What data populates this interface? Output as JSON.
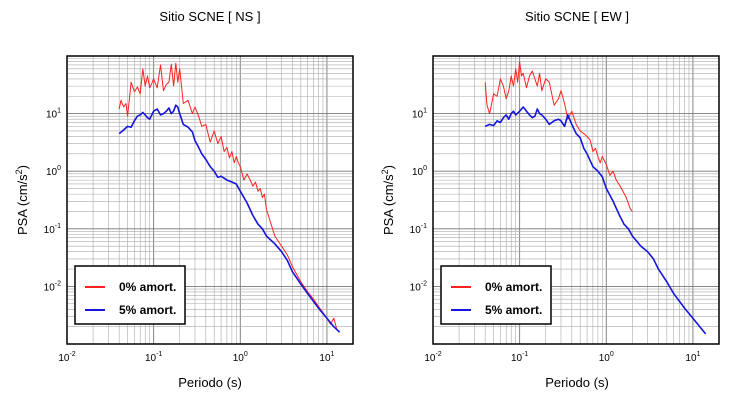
{
  "chart_data": [
    {
      "type": "line",
      "title": "Sitio SCNE [ NS ]",
      "xlabel": "Periodo (s)",
      "ylabel_main": "PSA (cm/s",
      "ylabel_sup": "2",
      "ylabel_close": ")",
      "x_scale": "log",
      "y_scale": "log",
      "xlim": [
        0.01,
        20
      ],
      "ylim": [
        0.001,
        100
      ],
      "grid": true,
      "legend_position": "bottom-left",
      "x_ticks": [
        {
          "base": "10",
          "exp": "-2"
        },
        {
          "base": "10",
          "exp": "-1"
        },
        {
          "base": "10",
          "exp": "0"
        },
        {
          "base": "10",
          "exp": "1"
        }
      ],
      "y_ticks": [
        {
          "base": "10",
          "exp": "-2"
        },
        {
          "base": "10",
          "exp": "-1"
        },
        {
          "base": "10",
          "exp": "0"
        },
        {
          "base": "10",
          "exp": "1"
        }
      ],
      "series": [
        {
          "name": "0% amort.",
          "color": "#ff2020",
          "x": [
            0.04,
            0.042,
            0.045,
            0.048,
            0.05,
            0.055,
            0.06,
            0.065,
            0.07,
            0.075,
            0.08,
            0.085,
            0.09,
            0.095,
            0.1,
            0.11,
            0.12,
            0.13,
            0.14,
            0.15,
            0.16,
            0.17,
            0.18,
            0.19,
            0.2,
            0.22,
            0.25,
            0.28,
            0.3,
            0.33,
            0.36,
            0.4,
            0.45,
            0.5,
            0.55,
            0.6,
            0.65,
            0.7,
            0.75,
            0.8,
            0.85,
            0.9,
            0.95,
            1.0,
            1.1,
            1.2,
            1.3,
            1.4,
            1.5,
            1.6,
            1.7,
            1.8,
            1.9,
            2.0,
            2.2,
            2.5,
            3.0,
            3.5,
            4.0,
            5.0,
            6.0,
            7.0,
            8.0,
            9.0,
            10.0,
            11.0,
            12.0,
            13.0,
            14.0
          ],
          "y": [
            12,
            17,
            13,
            15,
            9,
            35,
            24,
            29,
            22,
            60,
            30,
            45,
            28,
            33,
            40,
            28,
            70,
            25,
            32,
            35,
            72,
            30,
            75,
            35,
            60,
            15,
            17,
            10,
            13,
            9,
            6,
            6.5,
            3.2,
            5.0,
            3.0,
            4.0,
            2.2,
            2.6,
            1.7,
            2.2,
            1.4,
            1.8,
            1.4,
            1.2,
            0.7,
            0.9,
            0.7,
            0.55,
            0.65,
            0.45,
            0.5,
            0.35,
            0.4,
            0.22,
            0.14,
            0.075,
            0.05,
            0.035,
            0.022,
            0.012,
            0.008,
            0.006,
            0.0045,
            0.0035,
            0.0028,
            0.0022,
            0.0028,
            0.0018,
            0.0016
          ]
        },
        {
          "name": "5% amort.",
          "color": "#1515e0",
          "x": [
            0.04,
            0.045,
            0.05,
            0.055,
            0.06,
            0.065,
            0.07,
            0.075,
            0.08,
            0.085,
            0.09,
            0.1,
            0.11,
            0.12,
            0.13,
            0.14,
            0.15,
            0.16,
            0.17,
            0.18,
            0.19,
            0.2,
            0.22,
            0.25,
            0.28,
            0.3,
            0.33,
            0.36,
            0.4,
            0.45,
            0.5,
            0.55,
            0.6,
            0.7,
            0.8,
            0.9,
            1.0,
            1.2,
            1.4,
            1.6,
            1.8,
            2.0,
            2.5,
            3.0,
            3.5,
            4.0,
            5.0,
            6.0,
            7.0,
            8.0,
            10.0,
            12.0,
            14.0
          ],
          "y": [
            4.5,
            5.2,
            6.0,
            5.8,
            7.5,
            9.0,
            9.5,
            10.5,
            9.5,
            8.5,
            8.0,
            11,
            12,
            9.5,
            10,
            11,
            12.5,
            10,
            11,
            14,
            13,
            10,
            6.5,
            5.8,
            4.8,
            3.4,
            2.6,
            2.0,
            1.6,
            1.2,
            1.0,
            0.78,
            0.82,
            0.7,
            0.65,
            0.6,
            0.45,
            0.28,
            0.17,
            0.12,
            0.1,
            0.075,
            0.055,
            0.04,
            0.028,
            0.018,
            0.011,
            0.0075,
            0.0055,
            0.0042,
            0.0028,
            0.002,
            0.0016
          ]
        }
      ]
    },
    {
      "type": "line",
      "title": "Sitio SCNE [ EW ]",
      "xlabel": "Periodo (s)",
      "ylabel_main": "PSA (cm/s",
      "ylabel_sup": "2",
      "ylabel_close": ")",
      "x_scale": "log",
      "y_scale": "log",
      "xlim": [
        0.01,
        20
      ],
      "ylim": [
        0.001,
        100
      ],
      "grid": true,
      "legend_position": "bottom-left",
      "x_ticks": [
        {
          "base": "10",
          "exp": "-2"
        },
        {
          "base": "10",
          "exp": "-1"
        },
        {
          "base": "10",
          "exp": "0"
        },
        {
          "base": "10",
          "exp": "1"
        }
      ],
      "y_ticks": [
        {
          "base": "10",
          "exp": "-2"
        },
        {
          "base": "10",
          "exp": "-1"
        },
        {
          "base": "10",
          "exp": "0"
        },
        {
          "base": "10",
          "exp": "1"
        }
      ],
      "series": [
        {
          "name": "0% amort.",
          "color": "#ff2020",
          "x": [
            0.04,
            0.042,
            0.045,
            0.05,
            0.055,
            0.06,
            0.065,
            0.07,
            0.075,
            0.08,
            0.085,
            0.09,
            0.095,
            0.1,
            0.105,
            0.11,
            0.12,
            0.13,
            0.14,
            0.15,
            0.16,
            0.17,
            0.18,
            0.2,
            0.22,
            0.25,
            0.28,
            0.3,
            0.33,
            0.36,
            0.4,
            0.45,
            0.5,
            0.55,
            0.6,
            0.65,
            0.7,
            0.75,
            0.8,
            0.85,
            0.9,
            1.0,
            1.1,
            1.2,
            1.3,
            1.4,
            1.5,
            1.7,
            1.9,
            2.0
          ],
          "y": [
            35,
            14,
            10,
            22,
            20,
            40,
            30,
            18,
            25,
            45,
            30,
            60,
            35,
            80,
            45,
            50,
            28,
            45,
            55,
            40,
            30,
            50,
            25,
            40,
            35,
            14,
            18,
            25,
            15,
            8,
            11,
            6.5,
            5.0,
            4.5,
            4.0,
            3.5,
            2.2,
            2.5,
            1.8,
            1.4,
            1.8,
            1.3,
            0.85,
            1.0,
            0.7,
            0.6,
            0.5,
            0.35,
            0.22,
            0.2
          ]
        },
        {
          "name": "5% amort.",
          "color": "#1515e0",
          "x": [
            0.04,
            0.045,
            0.05,
            0.055,
            0.06,
            0.065,
            0.07,
            0.075,
            0.08,
            0.085,
            0.09,
            0.1,
            0.11,
            0.12,
            0.13,
            0.14,
            0.15,
            0.16,
            0.17,
            0.18,
            0.2,
            0.22,
            0.25,
            0.28,
            0.3,
            0.33,
            0.36,
            0.4,
            0.45,
            0.5,
            0.55,
            0.6,
            0.7,
            0.8,
            0.9,
            1.0,
            1.2,
            1.4,
            1.6,
            1.8,
            2.0,
            2.5,
            3.0,
            3.5,
            4.0,
            5.0,
            6.0,
            7.0,
            8.0,
            10.0,
            12.0,
            14.0
          ],
          "y": [
            6.0,
            6.5,
            6.2,
            7.5,
            7.0,
            8.5,
            9.5,
            8.0,
            10,
            11,
            9.5,
            11,
            13,
            11,
            9.5,
            8.5,
            9.0,
            12,
            10,
            9.5,
            8.0,
            6.5,
            7.5,
            8.0,
            7.5,
            6.0,
            9.5,
            6.5,
            4.5,
            3.8,
            2.5,
            2.0,
            1.2,
            1.0,
            0.8,
            0.5,
            0.3,
            0.18,
            0.12,
            0.1,
            0.075,
            0.05,
            0.04,
            0.03,
            0.02,
            0.012,
            0.0075,
            0.0055,
            0.0042,
            0.0028,
            0.002,
            0.0015
          ]
        }
      ]
    }
  ]
}
